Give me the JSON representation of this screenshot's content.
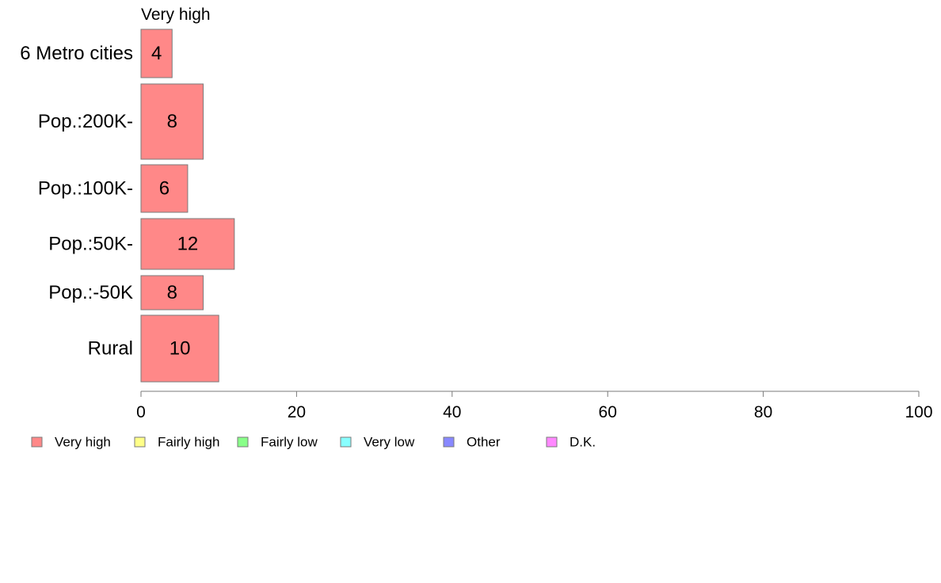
{
  "chart_data": {
    "type": "bar",
    "orientation": "horizontal",
    "stacked": true,
    "top_label": "Very high",
    "categories": [
      "6 Metro cities",
      "Pop.:200K-",
      "Pop.:100K-",
      "Pop.:50K-",
      "Pop.:-50K",
      "Rural"
    ],
    "series": [
      {
        "name": "Very high",
        "values": [
          4,
          8,
          6,
          12,
          8,
          10
        ],
        "color": "#ff8888"
      }
    ],
    "legend": [
      {
        "name": "Very high",
        "color": "#ff8888"
      },
      {
        "name": "Fairly high",
        "color": "#ffff88"
      },
      {
        "name": "Fairly low",
        "color": "#88ff88"
      },
      {
        "name": "Very low",
        "color": "#88ffff"
      },
      {
        "name": "Other",
        "color": "#8888ff"
      },
      {
        "name": "D.K.",
        "color": "#ff88ff"
      }
    ],
    "legend_position": "bottom",
    "xlim": [
      0,
      100
    ],
    "xticks": [
      0,
      20,
      40,
      60,
      80,
      100
    ],
    "xlabel": "",
    "ylabel": "",
    "title": "",
    "grid": false
  }
}
